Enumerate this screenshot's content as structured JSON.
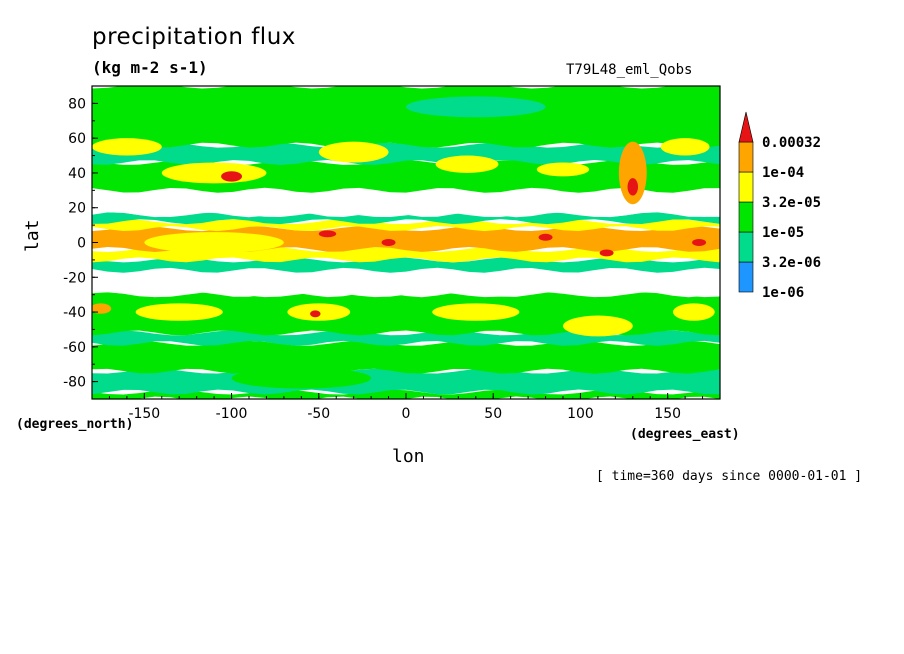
{
  "chart_data": {
    "type": "heatmap",
    "title": "precipitation flux",
    "units": "(kg m-2 s-1)",
    "dataset": "T79L48_eml_Qobs",
    "xlabel": "lon",
    "ylabel": "lat",
    "xunits": "(degrees_east)",
    "yunits": "(degrees_north)",
    "time_note": "[ time=360 days since 0000-01-01 ]",
    "xlim": [
      -180,
      180
    ],
    "ylim": [
      -90,
      90
    ],
    "xticks": [
      -150,
      -100,
      -50,
      0,
      50,
      100,
      150
    ],
    "yticks": [
      80,
      60,
      40,
      20,
      0,
      -20,
      -40,
      -60,
      -80
    ],
    "colorbar": {
      "levels": [
        "1e-06",
        "3.2e-06",
        "1e-05",
        "3.2e-05",
        "1e-04",
        "0.00032"
      ],
      "colors": [
        "#ffffff",
        "#1e96ff",
        "#00dc8c",
        "#00e600",
        "#ffff00",
        "#ffa500",
        "#e61414"
      ]
    },
    "bands": [
      {
        "lat": [
          -90,
          -86
        ],
        "level": 3
      },
      {
        "lat": [
          -86,
          -74
        ],
        "level": 2
      },
      {
        "lat": [
          -74,
          -58
        ],
        "level": 3
      },
      {
        "lat": [
          -58,
          -52
        ],
        "level": 2
      },
      {
        "lat": [
          -52,
          -30
        ],
        "level": 3
      },
      {
        "lat": [
          -30,
          -16
        ],
        "level": 0
      },
      {
        "lat": [
          -16,
          -10
        ],
        "level": 2
      },
      {
        "lat": [
          -10,
          -4
        ],
        "level": 4
      },
      {
        "lat": [
          -4,
          8
        ],
        "level": 5
      },
      {
        "lat": [
          8,
          12
        ],
        "level": 4
      },
      {
        "lat": [
          12,
          16
        ],
        "level": 2
      },
      {
        "lat": [
          16,
          30
        ],
        "level": 0
      },
      {
        "lat": [
          30,
          46
        ],
        "level": 3
      },
      {
        "lat": [
          46,
          56
        ],
        "level": 2
      },
      {
        "lat": [
          56,
          90
        ],
        "level": 3
      }
    ],
    "features": [
      {
        "lon": -160,
        "lat": 55,
        "rlon": 20,
        "rlat": 5,
        "level": 4
      },
      {
        "lon": -110,
        "lat": 40,
        "rlon": 30,
        "rlat": 6,
        "level": 4
      },
      {
        "lon": -100,
        "lat": 38,
        "rlon": 6,
        "rlat": 3,
        "level": 6
      },
      {
        "lon": -30,
        "lat": 52,
        "rlon": 20,
        "rlat": 6,
        "level": 4
      },
      {
        "lon": 35,
        "lat": 45,
        "rlon": 18,
        "rlat": 5,
        "level": 4
      },
      {
        "lon": 90,
        "lat": 42,
        "rlon": 15,
        "rlat": 4,
        "level": 4
      },
      {
        "lon": 130,
        "lat": 40,
        "rlon": 8,
        "rlat": 18,
        "level": 5
      },
      {
        "lon": 130,
        "lat": 32,
        "rlon": 3,
        "rlat": 5,
        "level": 6
      },
      {
        "lon": 160,
        "lat": 55,
        "rlon": 14,
        "rlat": 5,
        "level": 4
      },
      {
        "lon": -130,
        "lat": -40,
        "rlon": 25,
        "rlat": 5,
        "level": 4
      },
      {
        "lon": -50,
        "lat": -40,
        "rlon": 18,
        "rlat": 5,
        "level": 4
      },
      {
        "lon": -175,
        "lat": -38,
        "rlon": 6,
        "rlat": 3,
        "level": 5
      },
      {
        "lon": -52,
        "lat": -41,
        "rlon": 3,
        "rlat": 2,
        "level": 6
      },
      {
        "lon": 40,
        "lat": -40,
        "rlon": 25,
        "rlat": 5,
        "level": 4
      },
      {
        "lon": 110,
        "lat": -48,
        "rlon": 20,
        "rlat": 6,
        "level": 4
      },
      {
        "lon": 165,
        "lat": -40,
        "rlon": 12,
        "rlat": 5,
        "level": 4
      },
      {
        "lon": -110,
        "lat": 0,
        "rlon": 40,
        "rlat": 6,
        "level": 4
      },
      {
        "lon": -45,
        "lat": 5,
        "rlon": 5,
        "rlat": 2,
        "level": 6
      },
      {
        "lon": -10,
        "lat": 0,
        "rlon": 4,
        "rlat": 2,
        "level": 6
      },
      {
        "lon": 80,
        "lat": 3,
        "rlon": 4,
        "rlat": 2,
        "level": 6
      },
      {
        "lon": 115,
        "lat": -6,
        "rlon": 4,
        "rlat": 2,
        "level": 6
      },
      {
        "lon": 168,
        "lat": 0,
        "rlon": 4,
        "rlat": 2,
        "level": 6
      },
      {
        "lon": 40,
        "lat": 78,
        "rlon": 40,
        "rlat": 6,
        "level": 2
      },
      {
        "lon": -60,
        "lat": -78,
        "rlon": 40,
        "rlat": 6,
        "level": 3
      }
    ]
  }
}
